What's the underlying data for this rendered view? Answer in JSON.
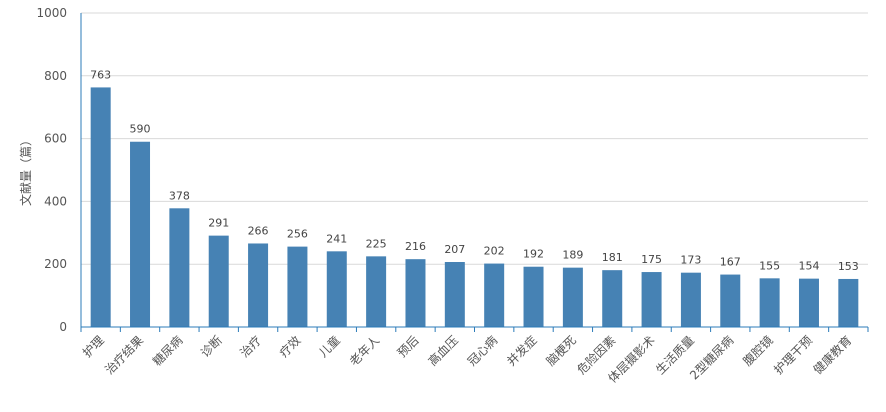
{
  "chart_data": {
    "type": "bar",
    "title": "",
    "xlabel": "",
    "ylabel": "文献量（篇）",
    "ylim": [
      0,
      1000
    ],
    "yticks": [
      0,
      200,
      400,
      600,
      800,
      1000
    ],
    "grid": true,
    "legend": "none",
    "bar_color": "#4682b4",
    "axis_color": "#2b7bb9",
    "categories": [
      "护理",
      "治疗结果",
      "糖尿病",
      "诊断",
      "治疗",
      "疗效",
      "儿童",
      "老年人",
      "预后",
      "高血压",
      "冠心病",
      "并发症",
      "脑梗死",
      "危险因素",
      "体层摄影术",
      "生活质量",
      "2型糖尿病",
      "腹腔镜",
      "护理干预",
      "健康教育"
    ],
    "values": [
      763,
      590,
      378,
      291,
      266,
      256,
      241,
      225,
      216,
      207,
      202,
      192,
      189,
      181,
      175,
      173,
      167,
      155,
      154,
      153
    ]
  }
}
